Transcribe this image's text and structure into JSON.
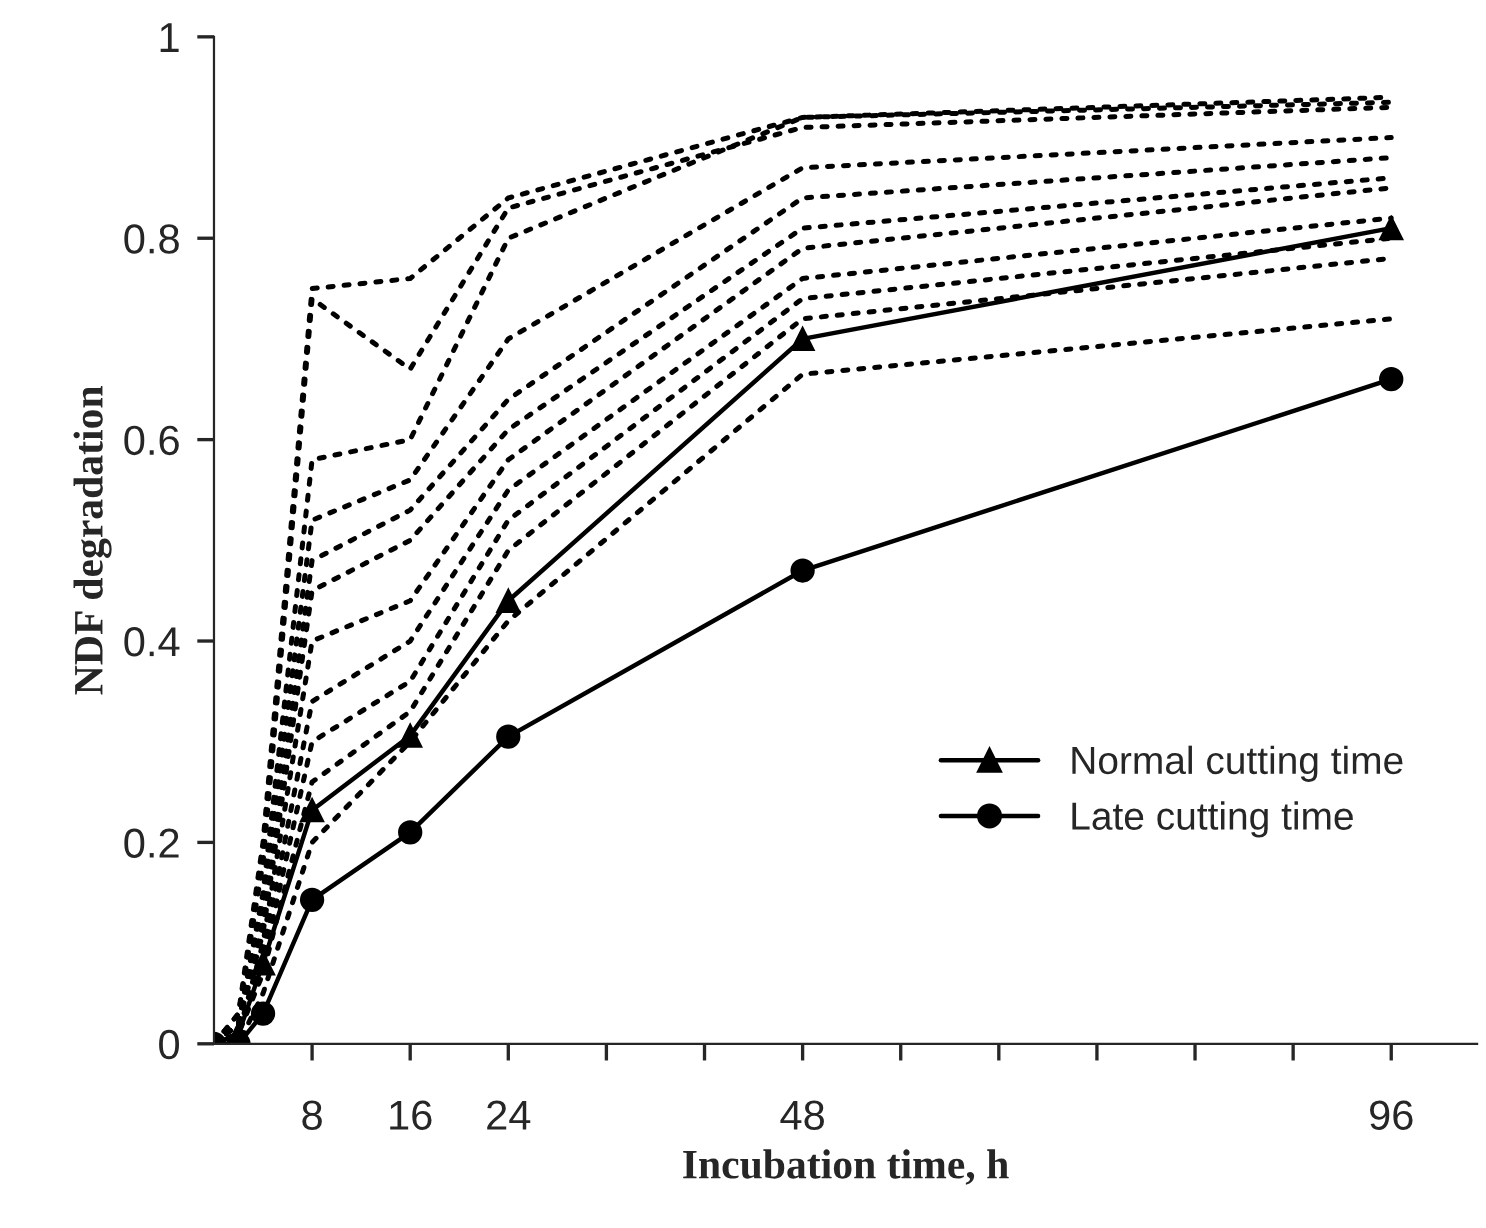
{
  "chart_data": {
    "type": "line",
    "xlabel": "Incubation time, h",
    "ylabel": "NDF degradation",
    "x": [
      0,
      2,
      4,
      8,
      16,
      24,
      48,
      96
    ],
    "xlim": [
      0,
      103
    ],
    "ylim": [
      0,
      1
    ],
    "xticks": [
      8,
      16,
      24,
      {
        "value": 32,
        "label": null
      },
      {
        "value": 40,
        "label": null
      },
      48,
      {
        "value": 56,
        "label": null
      },
      {
        "value": 64,
        "label": null
      },
      {
        "value": 72,
        "label": null
      },
      {
        "value": 80,
        "label": null
      },
      {
        "value": 88,
        "label": null
      },
      96
    ],
    "yticks": [
      0,
      0.2,
      0.4,
      0.6,
      0.8,
      1
    ],
    "grid": false,
    "legend": "lower right",
    "series": [
      {
        "color": "#000000",
        "line_style": "dotted",
        "marker": "none",
        "values": [
          0,
          0.03,
          0.2,
          0.75,
          0.76,
          0.84,
          0.92,
          0.94
        ]
      },
      {
        "color": "#000000",
        "line_style": "dotted",
        "marker": "none",
        "values": [
          0,
          0.03,
          0.18,
          0.74,
          0.67,
          0.83,
          0.91,
          0.93
        ]
      },
      {
        "color": "#000000",
        "line_style": "dotted",
        "marker": "none",
        "values": [
          0,
          0.02,
          0.15,
          0.58,
          0.6,
          0.8,
          0.92,
          0.935
        ]
      },
      {
        "color": "#000000",
        "line_style": "dotted",
        "marker": "none",
        "values": [
          0,
          0.02,
          0.14,
          0.52,
          0.56,
          0.7,
          0.87,
          0.9
        ]
      },
      {
        "color": "#000000",
        "line_style": "dotted",
        "marker": "none",
        "values": [
          0,
          0.02,
          0.12,
          0.48,
          0.53,
          0.64,
          0.84,
          0.88
        ]
      },
      {
        "color": "#000000",
        "line_style": "dotted",
        "marker": "none",
        "values": [
          0,
          0.02,
          0.11,
          0.45,
          0.5,
          0.61,
          0.81,
          0.86
        ]
      },
      {
        "color": "#000000",
        "line_style": "dotted",
        "marker": "none",
        "values": [
          0,
          0.01,
          0.1,
          0.4,
          0.44,
          0.58,
          0.79,
          0.85
        ]
      },
      {
        "color": "#000000",
        "line_style": "dotted",
        "marker": "none",
        "values": [
          0,
          0.01,
          0.09,
          0.34,
          0.4,
          0.55,
          0.76,
          0.82
        ]
      },
      {
        "color": "#000000",
        "line_style": "dotted",
        "marker": "none",
        "values": [
          0,
          0.01,
          0.08,
          0.3,
          0.36,
          0.52,
          0.74,
          0.8
        ]
      },
      {
        "color": "#000000",
        "line_style": "dotted",
        "marker": "none",
        "values": [
          0,
          0.01,
          0.07,
          0.26,
          0.33,
          0.49,
          0.72,
          0.78
        ]
      },
      {
        "color": "#000000",
        "line_style": "dotted",
        "marker": "none",
        "values": [
          0,
          0.0,
          0.05,
          0.2,
          0.3,
          0.42,
          0.665,
          0.72
        ]
      },
      {
        "name": "Normal cutting time",
        "color": "#000000",
        "line_style": "solid",
        "marker": "triangle",
        "values": [
          0,
          0.01,
          0.08,
          0.232,
          0.306,
          0.44,
          0.7,
          0.81
        ]
      },
      {
        "name": "Late cutting time",
        "color": "#000000",
        "line_style": "solid",
        "marker": "circle",
        "values": [
          0,
          0.0,
          0.03,
          0.143,
          0.21,
          0.305,
          0.47,
          0.66
        ]
      }
    ]
  }
}
